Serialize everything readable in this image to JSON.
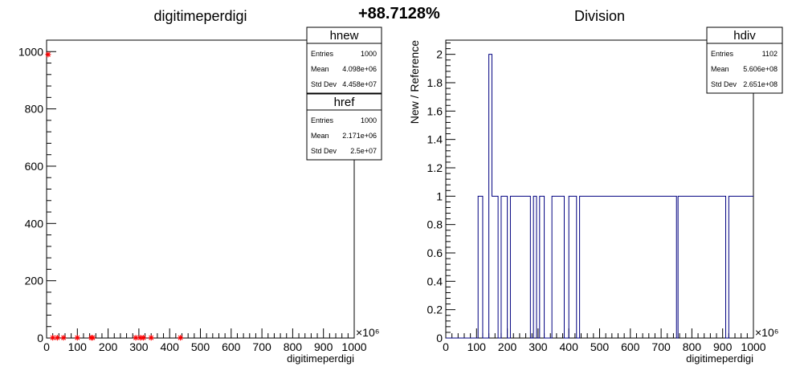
{
  "header": {
    "percent": "+88.7128%"
  },
  "chart_data": [
    {
      "type": "scatter",
      "title": "digitimeperdigi",
      "xlabel": "digitimeperdigi",
      "ylabel": "",
      "x_exponent": "×10⁶",
      "xlim": [
        0,
        1000
      ],
      "ylim": [
        0,
        1040
      ],
      "xticks": [
        "0",
        "100",
        "200",
        "300",
        "400",
        "500",
        "600",
        "700",
        "800",
        "900",
        "1000"
      ],
      "yticks": [
        "0",
        "200",
        "400",
        "600",
        "800",
        "1000"
      ],
      "xtick_values": [
        0,
        100,
        200,
        300,
        400,
        500,
        600,
        700,
        800,
        900,
        1000
      ],
      "ytick_values": [
        0,
        200,
        400,
        600,
        800,
        1000
      ],
      "series": [
        {
          "name": "hnew",
          "color": "#ff0000",
          "x": [
            5,
            20,
            35,
            55,
            100,
            145,
            150,
            290,
            305,
            315,
            340,
            435
          ],
          "y": [
            990,
            1,
            1,
            1,
            1,
            1,
            1,
            1,
            1,
            1,
            1,
            1
          ]
        },
        {
          "name": "href",
          "color": "#000080",
          "x": [
            5,
            20,
            35,
            55,
            100,
            145,
            290,
            305,
            315,
            340,
            435
          ],
          "y": [
            990,
            1,
            1,
            1,
            1,
            1,
            1,
            1,
            1,
            1,
            1
          ]
        }
      ],
      "stats": [
        {
          "name": "hnew",
          "rows": [
            [
              "Entries",
              "1000"
            ],
            [
              "Mean",
              "4.098e+06"
            ],
            [
              "Std Dev",
              "4.458e+07"
            ]
          ]
        },
        {
          "name": "href",
          "rows": [
            [
              "Entries",
              "1000"
            ],
            [
              "Mean",
              "2.171e+06"
            ],
            [
              "Std Dev",
              "2.5e+07"
            ]
          ]
        }
      ]
    },
    {
      "type": "line",
      "title": "Division",
      "xlabel": "digitimeperdigi",
      "ylabel": "New / Reference",
      "x_exponent": "×10⁶",
      "xlim": [
        0,
        1000
      ],
      "ylim": [
        0,
        2.1
      ],
      "xticks": [
        "0",
        "100",
        "200",
        "300",
        "400",
        "500",
        "600",
        "700",
        "800",
        "900",
        "1000"
      ],
      "yticks": [
        "0",
        "0.2",
        "0.4",
        "0.6",
        "0.8",
        "1",
        "1.2",
        "1.4",
        "1.6",
        "1.8",
        "2"
      ],
      "xtick_values": [
        0,
        100,
        200,
        300,
        400,
        500,
        600,
        700,
        800,
        900,
        1000
      ],
      "ytick_values": [
        0,
        0.2,
        0.4,
        0.6,
        0.8,
        1,
        1.2,
        1.4,
        1.6,
        1.8,
        2
      ],
      "color": "#000080",
      "bins": [
        [
          0,
          105,
          0
        ],
        [
          105,
          120,
          1
        ],
        [
          120,
          140,
          0
        ],
        [
          140,
          150,
          2
        ],
        [
          150,
          170,
          1
        ],
        [
          170,
          180,
          0
        ],
        [
          180,
          200,
          1
        ],
        [
          200,
          210,
          0
        ],
        [
          210,
          220,
          1
        ],
        [
          220,
          275,
          1
        ],
        [
          275,
          285,
          0
        ],
        [
          285,
          295,
          1
        ],
        [
          295,
          305,
          0
        ],
        [
          305,
          320,
          1
        ],
        [
          320,
          345,
          0
        ],
        [
          345,
          385,
          1
        ],
        [
          385,
          400,
          0
        ],
        [
          400,
          425,
          1
        ],
        [
          425,
          435,
          0
        ],
        [
          435,
          750,
          1
        ],
        [
          750,
          755,
          0
        ],
        [
          755,
          910,
          1
        ],
        [
          910,
          920,
          0
        ],
        [
          920,
          1000,
          1
        ]
      ],
      "stats": [
        {
          "name": "hdiv",
          "rows": [
            [
              "Entries",
              "1102"
            ],
            [
              "Mean",
              "5.606e+08"
            ],
            [
              "Std Dev",
              "2.651e+08"
            ]
          ]
        }
      ]
    }
  ]
}
